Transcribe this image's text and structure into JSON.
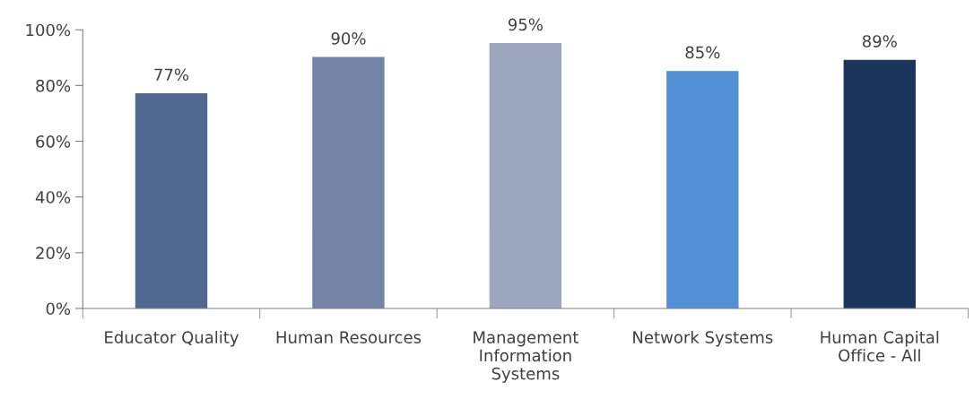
{
  "chart_data": {
    "type": "bar",
    "categories": [
      "Educator Quality",
      "Human Resources",
      "Management\nInformation\nSystems",
      "Network Systems",
      "Human Capital\nOffice - All"
    ],
    "values": [
      77,
      90,
      95,
      85,
      89
    ],
    "colors": [
      "#4f6890",
      "#7484a6",
      "#9ca6bf",
      "#5490d6",
      "#1a365d"
    ],
    "value_labels": [
      "77%",
      "90%",
      "95%",
      "85%",
      "89%"
    ],
    "ylim": [
      0,
      100
    ],
    "yticks": [
      {
        "value": 0,
        "label": "0%"
      },
      {
        "value": 20,
        "label": "20%"
      },
      {
        "value": 40,
        "label": "40%"
      },
      {
        "value": 60,
        "label": "60%"
      },
      {
        "value": 80,
        "label": "80%"
      },
      {
        "value": 100,
        "label": "100%"
      }
    ],
    "grid": false,
    "legend": false
  }
}
